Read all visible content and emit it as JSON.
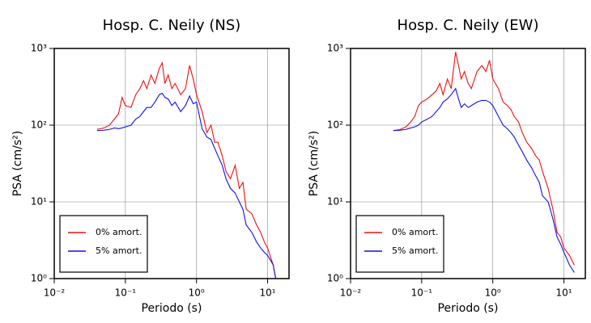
{
  "chart_data": [
    {
      "type": "line",
      "title": "Hosp. C. Neily (NS)",
      "x_label": "Periodo (s)",
      "y_label": "PSA (cm/s²)",
      "log_x": true,
      "log_y": true,
      "grid": true,
      "legend": "lower left",
      "xlim": [
        0.01,
        20
      ],
      "ylim": [
        1,
        1000
      ],
      "xticks": [
        {
          "value": 0.01,
          "label": "10⁻²"
        },
        {
          "value": 0.1,
          "label": "10⁻¹"
        },
        {
          "value": 1,
          "label": "10⁰"
        },
        {
          "value": 10,
          "label": "10¹"
        }
      ],
      "yticks": [
        {
          "value": 1,
          "label": "10⁰"
        },
        {
          "value": 10,
          "label": "10¹"
        },
        {
          "value": 100,
          "label": "10²"
        },
        {
          "value": 1000,
          "label": "10³"
        }
      ],
      "x": [
        0.04,
        0.05,
        0.06,
        0.07,
        0.08,
        0.09,
        0.1,
        0.12,
        0.14,
        0.16,
        0.18,
        0.2,
        0.23,
        0.26,
        0.3,
        0.33,
        0.36,
        0.4,
        0.45,
        0.5,
        0.6,
        0.7,
        0.8,
        0.9,
        1.0,
        1.2,
        1.4,
        1.6,
        1.8,
        2.0,
        2.3,
        2.6,
        3.0,
        3.5,
        4.0,
        4.5,
        5.0,
        6.0,
        7.0,
        8.0,
        9.0,
        10,
        12,
        13
      ],
      "series": [
        {
          "name": "0% amort.",
          "color": "#ee1111",
          "values": [
            88,
            92,
            100,
            120,
            140,
            230,
            180,
            170,
            250,
            300,
            380,
            300,
            450,
            350,
            550,
            650,
            350,
            450,
            300,
            350,
            250,
            300,
            600,
            400,
            250,
            150,
            80,
            100,
            60,
            60,
            40,
            25,
            20,
            30,
            15,
            18,
            8,
            7,
            5,
            4,
            3,
            2.5,
            1.5,
            1
          ]
        },
        {
          "name": "5% amort.",
          "color": "#1111ee",
          "values": [
            85,
            86,
            88,
            92,
            90,
            92,
            95,
            100,
            120,
            130,
            150,
            170,
            170,
            200,
            250,
            260,
            230,
            220,
            180,
            200,
            150,
            180,
            240,
            190,
            200,
            90,
            70,
            65,
            50,
            40,
            30,
            20,
            15,
            13,
            10,
            8,
            5,
            4,
            3,
            2.5,
            2.2,
            2,
            1.5,
            1
          ]
        }
      ]
    },
    {
      "type": "line",
      "title": "Hosp. C. Neily (EW)",
      "x_label": "Periodo (s)",
      "y_label": "PSA (cm/s²)",
      "log_x": true,
      "log_y": true,
      "grid": true,
      "legend": "lower left",
      "xlim": [
        0.01,
        20
      ],
      "ylim": [
        1,
        1000
      ],
      "xticks": [
        {
          "value": 0.01,
          "label": "10⁻²"
        },
        {
          "value": 0.1,
          "label": "10⁻¹"
        },
        {
          "value": 1,
          "label": "10⁰"
        },
        {
          "value": 10,
          "label": "10¹"
        }
      ],
      "yticks": [
        {
          "value": 1,
          "label": "10⁰"
        },
        {
          "value": 10,
          "label": "10¹"
        },
        {
          "value": 100,
          "label": "10²"
        },
        {
          "value": 1000,
          "label": "10³"
        }
      ],
      "x": [
        0.04,
        0.05,
        0.06,
        0.07,
        0.08,
        0.09,
        0.1,
        0.12,
        0.14,
        0.16,
        0.18,
        0.2,
        0.23,
        0.26,
        0.3,
        0.33,
        0.36,
        0.4,
        0.45,
        0.5,
        0.6,
        0.7,
        0.8,
        0.9,
        1.0,
        1.2,
        1.4,
        1.6,
        1.8,
        2.0,
        2.3,
        2.6,
        3.0,
        3.5,
        4.0,
        4.5,
        5.0,
        6.0,
        7.0,
        8.0,
        9.0,
        10,
        12,
        14
      ],
      "series": [
        {
          "name": "0% amort.",
          "color": "#ee1111",
          "values": [
            85,
            88,
            95,
            110,
            130,
            180,
            200,
            220,
            250,
            280,
            350,
            250,
            400,
            300,
            900,
            600,
            400,
            500,
            350,
            300,
            500,
            600,
            500,
            700,
            400,
            300,
            200,
            180,
            160,
            130,
            110,
            80,
            60,
            50,
            40,
            35,
            25,
            15,
            8,
            4,
            3.5,
            2.5,
            2,
            1.5
          ]
        },
        {
          "name": "5% amort.",
          "color": "#1111ee",
          "values": [
            85,
            86,
            88,
            92,
            95,
            100,
            110,
            120,
            130,
            150,
            170,
            200,
            220,
            250,
            300,
            220,
            170,
            190,
            170,
            180,
            200,
            210,
            210,
            200,
            180,
            130,
            100,
            90,
            80,
            70,
            55,
            45,
            35,
            28,
            22,
            18,
            12,
            10,
            6,
            3.5,
            2.8,
            2.2,
            1.5,
            1.2
          ]
        }
      ]
    }
  ]
}
